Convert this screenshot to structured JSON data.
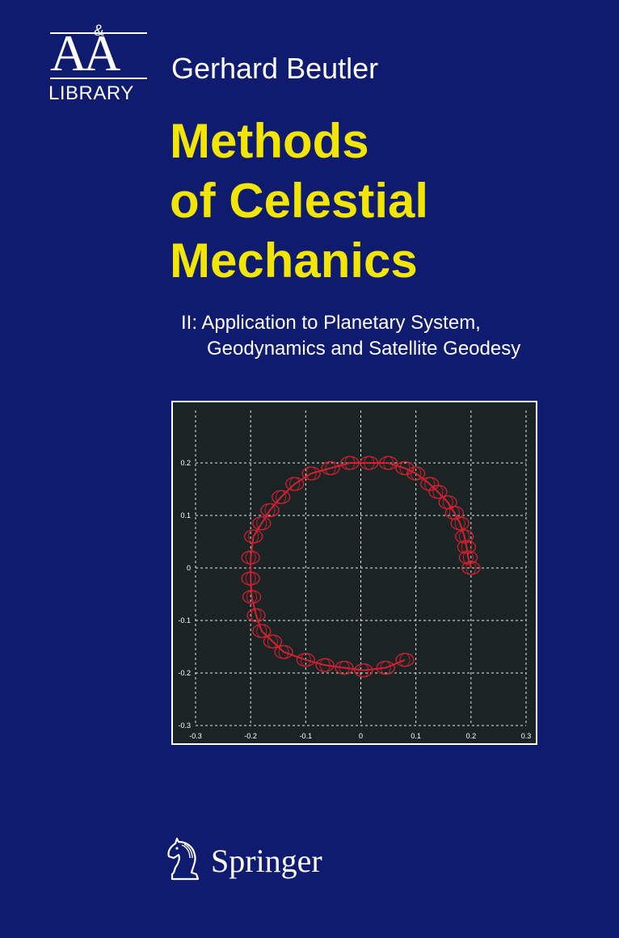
{
  "series": {
    "logo_amp": "&",
    "logo_letters": "AA",
    "logo_library": "LIBRARY"
  },
  "author": "Gerhard Beutler",
  "title_lines": [
    "Methods",
    "of Celestial",
    "Mechanics"
  ],
  "subtitle": {
    "line1": "II: Application to Planetary System,",
    "line2": "Geodynamics and Satellite Geodesy"
  },
  "publisher": "Springer",
  "colors": {
    "background": "#0e1b6e",
    "title": "#f2e500",
    "plot_background": "#1a2424",
    "trace": "#d42030",
    "grid": "#e8e8e8"
  },
  "icons": {
    "publisher_logo": "knight-chess-piece-icon"
  },
  "chart_data": {
    "type": "scatter",
    "title": "",
    "xlabel": "",
    "ylabel": "",
    "xlim": [
      -0.3,
      0.3
    ],
    "ylim": [
      -0.3,
      0.3
    ],
    "x_ticks": [
      "-0.3",
      "-0.2",
      "-0.1",
      "0",
      "0.1",
      "0.2",
      "0.3"
    ],
    "y_ticks": [
      "0.2",
      "0.1",
      "0",
      "-0.1",
      "-0.2",
      "-0.3"
    ],
    "grid": true,
    "series": [
      {
        "x": [
          0.2,
          0.195,
          0.192,
          0.188,
          0.18,
          0.17,
          0.158,
          0.14,
          0.125,
          0.1,
          0.08,
          0.05,
          0.015,
          -0.02,
          -0.055,
          -0.09,
          -0.12,
          -0.145,
          -0.165,
          -0.18,
          -0.195,
          -0.2,
          -0.2,
          -0.198,
          -0.19,
          -0.18,
          -0.16,
          -0.14,
          -0.1,
          -0.065,
          -0.03,
          0.005,
          0.045,
          0.08
        ],
        "y": [
          0.0,
          0.02,
          0.04,
          0.06,
          0.085,
          0.105,
          0.125,
          0.145,
          0.16,
          0.18,
          0.19,
          0.2,
          0.2,
          0.2,
          0.19,
          0.18,
          0.16,
          0.135,
          0.11,
          0.085,
          0.06,
          0.02,
          -0.02,
          -0.055,
          -0.09,
          -0.12,
          -0.14,
          -0.16,
          -0.175,
          -0.185,
          -0.19,
          -0.195,
          -0.19,
          -0.175
        ]
      }
    ]
  }
}
